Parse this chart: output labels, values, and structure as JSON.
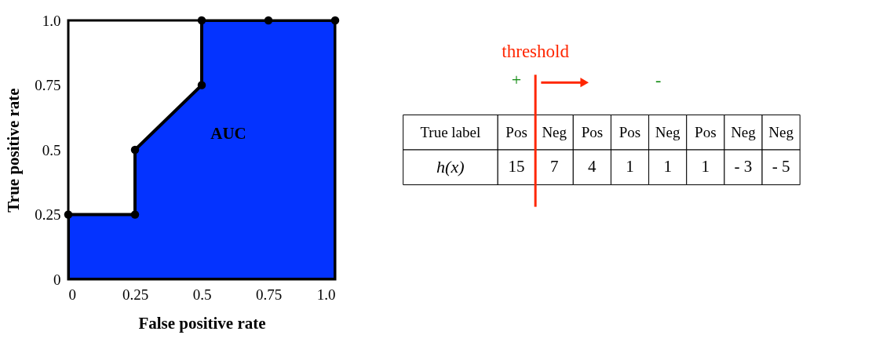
{
  "chart_data": [
    {
      "type": "area",
      "xlabel": "False positive rate",
      "ylabel": "True positive rate",
      "x": [
        0,
        0.25,
        0.25,
        0.5,
        0.5,
        0.75,
        1
      ],
      "series": [
        {
          "color": "#0433ff",
          "values": [
            0.25,
            0.25,
            0.5,
            0.75,
            1,
            1,
            1
          ]
        }
      ],
      "xlim": [
        0,
        1
      ],
      "ylim": [
        0,
        1
      ],
      "xticks": [
        0,
        0.25,
        0.5,
        0.75,
        {
          "value": 1,
          "label": "1.0"
        }
      ],
      "yticks": [
        0,
        0.25,
        0.5,
        0.75,
        {
          "value": 1,
          "label": "1.0"
        }
      ],
      "marker": "circle",
      "grid": false,
      "annotations": [
        "AUC"
      ]
    },
    {
      "type": "other",
      "categories": [
        "Pos",
        "Neg",
        "Pos",
        "Pos",
        "Neg",
        "Pos",
        "Neg",
        "Neg"
      ],
      "value_labels": [
        "15",
        "7",
        "4",
        "1",
        "1",
        "1",
        "- 3",
        "- 5"
      ],
      "annotations": [
        "True label",
        "h(x)",
        "+",
        "-"
      ],
      "ref_lines": [
        {
          "axis": "x",
          "label": "threshold",
          "color": "#ff2600"
        }
      ]
    }
  ]
}
